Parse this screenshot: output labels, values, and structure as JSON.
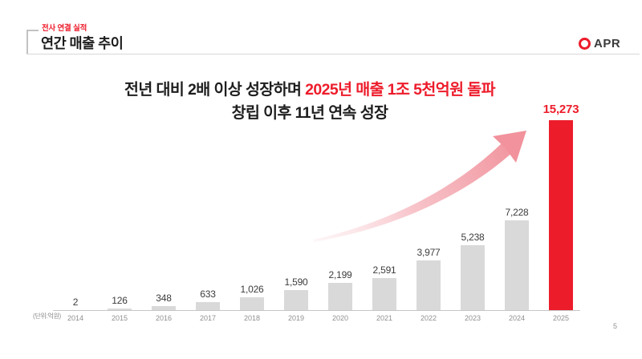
{
  "header": {
    "eyebrow": "전사 연결 실적",
    "title": "연간 매출 추이",
    "logo_text": "APR"
  },
  "headline": {
    "line1_black": "전년 대비 2배 이상 성장하며 ",
    "line1_red": "2025년 매출 1조 5천억원 돌파",
    "line2": "창립 이후 11년 연속 성장"
  },
  "chart_data": {
    "type": "bar",
    "title": "연간 매출 추이",
    "unit_label": "(단위:억원)",
    "categories": [
      "2014",
      "2015",
      "2016",
      "2017",
      "2018",
      "2019",
      "2020",
      "2021",
      "2022",
      "2023",
      "2024",
      "2025"
    ],
    "values": [
      2,
      126,
      348,
      633,
      1026,
      1590,
      2199,
      2591,
      3977,
      5238,
      7228,
      15273
    ],
    "value_labels": [
      "2",
      "126",
      "348",
      "633",
      "1,026",
      "1,590",
      "2,199",
      "2,591",
      "3,977",
      "5,238",
      "7,228",
      "15,273"
    ],
    "highlight_index": 11,
    "bar_color": "#d9d9d9",
    "highlight_color": "#ed1c2b",
    "ylim": [
      0,
      16000
    ],
    "grid": "off",
    "legend": "none",
    "annotation": "growth-arrow-up-right"
  },
  "footer": {
    "page_number": "5"
  },
  "colors": {
    "accent_red": "#ed1c2b",
    "text_dark": "#1e1e1e",
    "bar_gray": "#d9d9d9",
    "arrow_pink": "#f1929c"
  }
}
